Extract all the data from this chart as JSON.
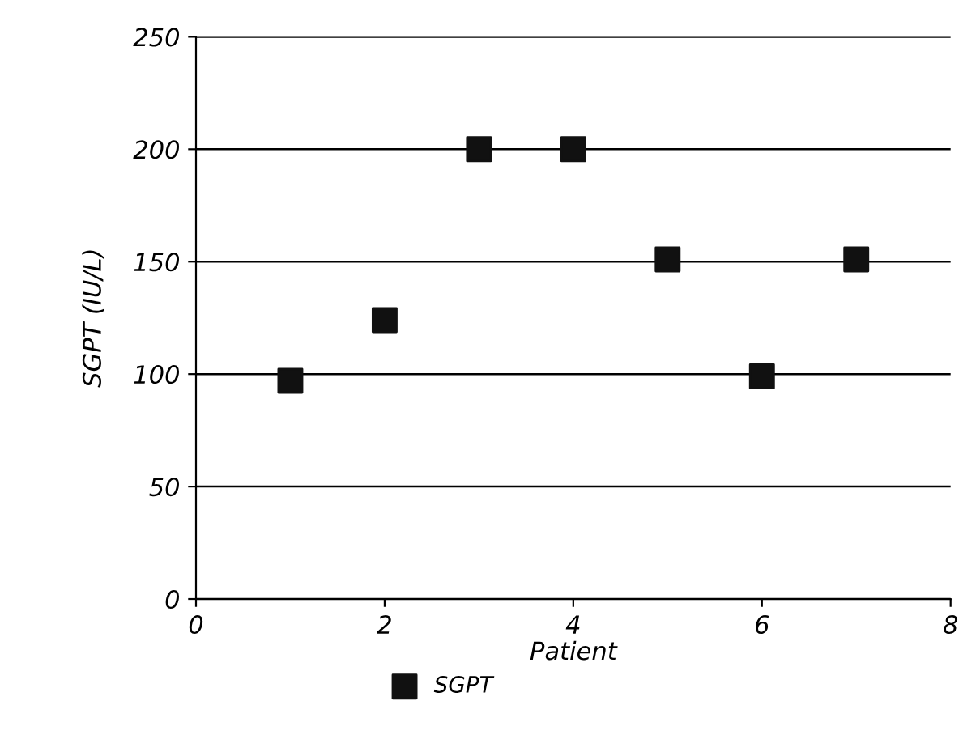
{
  "chart_data": {
    "type": "scatter",
    "xlabel": "Patient",
    "ylabel": "SGPT (IU/L)",
    "x": [
      1,
      2,
      3,
      4,
      5,
      6,
      7
    ],
    "series": [
      {
        "name": "SGPT",
        "color": "#111111",
        "values": [
          97,
          124,
          200,
          200,
          151,
          99,
          151
        ]
      }
    ],
    "xlim": [
      0,
      8
    ],
    "xticks": [
      0,
      2,
      4,
      6,
      8
    ],
    "ylim": [
      0,
      250
    ],
    "yticks": [
      0,
      50,
      100,
      150,
      200,
      250
    ],
    "grid": "y",
    "legend": "bottom",
    "marker": "square"
  }
}
